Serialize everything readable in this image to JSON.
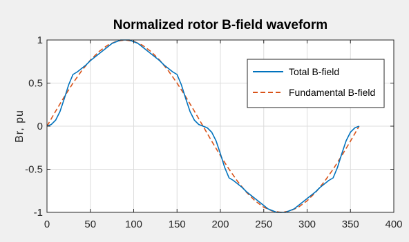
{
  "chart_data": {
    "type": "line",
    "title": "Normalized rotor B-field waveform",
    "xlabel": "",
    "ylabel": "Br, pu",
    "xlim": [
      0,
      400
    ],
    "ylim": [
      -1,
      1
    ],
    "xticks": [
      "0",
      "50",
      "100",
      "150",
      "200",
      "250",
      "300",
      "350",
      "400"
    ],
    "yticks": [
      "1",
      "0.5",
      "0",
      "-0.5",
      "-1"
    ],
    "grid": true,
    "legend_position": "top-right",
    "series": [
      {
        "name": "Total B-field",
        "color": "#0072bd",
        "style": "solid",
        "x": [
          0,
          5,
          10,
          15,
          20,
          25,
          30,
          35,
          40,
          45,
          50,
          55,
          60,
          65,
          70,
          75,
          80,
          85,
          90,
          95,
          100,
          105,
          110,
          115,
          120,
          125,
          130,
          135,
          140,
          145,
          150,
          155,
          160,
          165,
          170,
          175,
          180,
          185,
          190,
          195,
          200,
          205,
          210,
          215,
          220,
          225,
          230,
          235,
          240,
          245,
          250,
          255,
          260,
          265,
          270,
          275,
          280,
          285,
          290,
          295,
          300,
          305,
          310,
          315,
          320,
          325,
          330,
          335,
          340,
          345,
          350,
          355,
          360
        ],
        "y": [
          0,
          0.02,
          0.07,
          0.17,
          0.32,
          0.48,
          0.6,
          0.63,
          0.67,
          0.71,
          0.76,
          0.8,
          0.84,
          0.88,
          0.92,
          0.96,
          0.98,
          1.0,
          1.0,
          1.0,
          0.98,
          0.96,
          0.92,
          0.88,
          0.84,
          0.8,
          0.76,
          0.71,
          0.67,
          0.63,
          0.6,
          0.48,
          0.32,
          0.17,
          0.07,
          0.02,
          0,
          -0.02,
          -0.07,
          -0.17,
          -0.32,
          -0.48,
          -0.6,
          -0.63,
          -0.67,
          -0.71,
          -0.76,
          -0.8,
          -0.84,
          -0.88,
          -0.92,
          -0.96,
          -0.98,
          -1.0,
          -1.0,
          -1.0,
          -0.98,
          -0.96,
          -0.92,
          -0.88,
          -0.84,
          -0.8,
          -0.76,
          -0.71,
          -0.67,
          -0.63,
          -0.6,
          -0.48,
          -0.32,
          -0.17,
          -0.07,
          -0.02,
          0
        ]
      },
      {
        "name": "Fundamental B-field",
        "color": "#d95319",
        "style": "dashed",
        "x": [
          0,
          10,
          20,
          30,
          40,
          50,
          60,
          70,
          80,
          90,
          100,
          110,
          120,
          130,
          140,
          150,
          160,
          170,
          180,
          190,
          200,
          210,
          220,
          230,
          240,
          250,
          260,
          270,
          280,
          290,
          300,
          310,
          320,
          330,
          340,
          350,
          360
        ],
        "y": [
          0,
          0.174,
          0.342,
          0.5,
          0.643,
          0.766,
          0.866,
          0.94,
          0.985,
          1.0,
          0.985,
          0.94,
          0.866,
          0.766,
          0.643,
          0.5,
          0.342,
          0.174,
          0,
          -0.174,
          -0.342,
          -0.5,
          -0.643,
          -0.766,
          -0.866,
          -0.94,
          -0.985,
          -1.0,
          -0.985,
          -0.94,
          -0.866,
          -0.766,
          -0.643,
          -0.5,
          -0.342,
          -0.174,
          0
        ]
      }
    ]
  }
}
